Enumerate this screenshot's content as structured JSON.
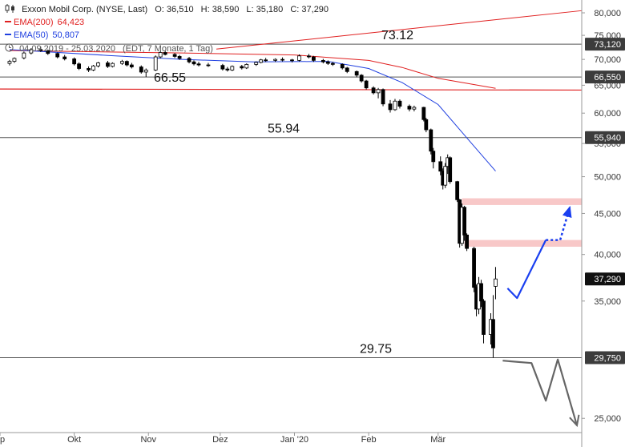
{
  "header": {
    "title": "Exxon Mobil Corp. (NYSE, Last)",
    "open": "O: 36,510",
    "high": "H: 38,590",
    "low": "L: 35,180",
    "close": "C: 37,290",
    "ema200_label": "EMA(200)",
    "ema200_value": "64,423",
    "ema50_label": "EMA(50)",
    "ema50_value": "50,807",
    "range_text": "04.09.2019 - 25.03.2020",
    "interval_text": "(EDT, 7 Monate, 1 Tag)",
    "ema200_color": "#e02020",
    "ema50_color": "#2040e0",
    "icons": [
      "candlestick-icon",
      "clock-icon"
    ]
  },
  "chart_data": {
    "type": "candlestick",
    "y_scale": "log",
    "ylim": [
      24000,
      83000
    ],
    "y_ticks": [
      {
        "value": 80000,
        "label": "80,000"
      },
      {
        "value": 75000,
        "label": "75,000"
      },
      {
        "value": 70000,
        "label": "70,000"
      },
      {
        "value": 65000,
        "label": "65,000"
      },
      {
        "value": 60000,
        "label": "60,000"
      },
      {
        "value": 55000,
        "label": "55,000"
      },
      {
        "value": 50000,
        "label": "50,000"
      },
      {
        "value": 45000,
        "label": "45,000"
      },
      {
        "value": 40000,
        "label": "40,000"
      },
      {
        "value": 35000,
        "label": "35,000"
      },
      {
        "value": 25000,
        "label": "25,000"
      }
    ],
    "x_ticks": [
      {
        "date": "2019-09-01",
        "label": "p"
      },
      {
        "date": "2019-10-01",
        "label": "Okt"
      },
      {
        "date": "2019-11-01",
        "label": "Nov"
      },
      {
        "date": "2019-12-01",
        "label": "Dez"
      },
      {
        "date": "2020-01-01",
        "label": "Jan '20"
      },
      {
        "date": "2020-02-01",
        "label": "Feb"
      },
      {
        "date": "2020-03-01",
        "label": "Mär"
      }
    ],
    "levels": [
      {
        "value": 73120,
        "label": "73.12",
        "badge": "73,120"
      },
      {
        "value": 66550,
        "label": "66.55",
        "badge": "66,550"
      },
      {
        "value": 55940,
        "label": "55.94",
        "badge": "55,940"
      },
      {
        "value": 29750,
        "label": "29.75",
        "badge": "29,750"
      }
    ],
    "last_price": {
      "value": 37290,
      "badge": "37,290"
    },
    "resistance_zones": [
      {
        "from": 46100,
        "to": 47000
      },
      {
        "from": 40900,
        "to": 41700
      }
    ],
    "ema200_series": [
      {
        "date": "2019-09-04",
        "value": 71800
      },
      {
        "date": "2019-11-15",
        "value": 71300
      },
      {
        "date": "2020-01-01",
        "value": 70900
      },
      {
        "date": "2020-02-01",
        "value": 69800
      },
      {
        "date": "2020-02-15",
        "value": 68400
      },
      {
        "date": "2020-03-01",
        "value": 66300
      },
      {
        "date": "2020-03-25",
        "value": 64423
      }
    ],
    "ema50_series": [
      {
        "date": "2019-09-04",
        "value": 72000
      },
      {
        "date": "2019-10-15",
        "value": 70800
      },
      {
        "date": "2019-11-15",
        "value": 70000
      },
      {
        "date": "2019-12-15",
        "value": 69500
      },
      {
        "date": "2020-01-15",
        "value": 69600
      },
      {
        "date": "2020-02-01",
        "value": 68200
      },
      {
        "date": "2020-02-15",
        "value": 65500
      },
      {
        "date": "2020-03-01",
        "value": 61500
      },
      {
        "date": "2020-03-15",
        "value": 55000
      },
      {
        "date": "2020-03-25",
        "value": 50807
      }
    ],
    "ohlc": [
      {
        "date": "2019-09-04",
        "o": 69200,
        "h": 69900,
        "l": 68800,
        "c": 69600
      },
      {
        "date": "2019-09-06",
        "o": 69600,
        "h": 70400,
        "l": 69300,
        "c": 70200
      },
      {
        "date": "2019-09-10",
        "o": 70300,
        "h": 71600,
        "l": 70000,
        "c": 71300
      },
      {
        "date": "2019-09-13",
        "o": 71300,
        "h": 72300,
        "l": 71000,
        "c": 72000
      },
      {
        "date": "2019-09-17",
        "o": 72000,
        "h": 72600,
        "l": 71500,
        "c": 71800
      },
      {
        "date": "2019-09-20",
        "o": 71800,
        "h": 72000,
        "l": 70900,
        "c": 71200
      },
      {
        "date": "2019-09-24",
        "o": 71200,
        "h": 71400,
        "l": 70200,
        "c": 70500
      },
      {
        "date": "2019-09-27",
        "o": 70500,
        "h": 70900,
        "l": 69800,
        "c": 70100
      },
      {
        "date": "2019-10-01",
        "o": 70100,
        "h": 70400,
        "l": 68800,
        "c": 69100
      },
      {
        "date": "2019-10-03",
        "o": 69100,
        "h": 69400,
        "l": 67900,
        "c": 68200
      },
      {
        "date": "2019-10-07",
        "o": 68200,
        "h": 68600,
        "l": 67500,
        "c": 67900
      },
      {
        "date": "2019-10-09",
        "o": 67900,
        "h": 68900,
        "l": 67700,
        "c": 68700
      },
      {
        "date": "2019-10-11",
        "o": 68700,
        "h": 69500,
        "l": 68400,
        "c": 69300
      },
      {
        "date": "2019-10-15",
        "o": 69300,
        "h": 69700,
        "l": 68300,
        "c": 68600
      },
      {
        "date": "2019-10-17",
        "o": 68600,
        "h": 69400,
        "l": 68400,
        "c": 69200
      },
      {
        "date": "2019-10-21",
        "o": 69200,
        "h": 69900,
        "l": 68900,
        "c": 69600
      },
      {
        "date": "2019-10-23",
        "o": 69600,
        "h": 69800,
        "l": 68600,
        "c": 68900
      },
      {
        "date": "2019-10-25",
        "o": 68900,
        "h": 69300,
        "l": 68200,
        "c": 68500
      },
      {
        "date": "2019-10-29",
        "o": 68500,
        "h": 68800,
        "l": 67200,
        "c": 67500
      },
      {
        "date": "2019-10-31",
        "o": 67500,
        "h": 68200,
        "l": 66550,
        "c": 67900
      },
      {
        "date": "2019-11-04",
        "o": 67900,
        "h": 70800,
        "l": 67700,
        "c": 70500
      },
      {
        "date": "2019-11-06",
        "o": 70500,
        "h": 71800,
        "l": 70200,
        "c": 71400
      },
      {
        "date": "2019-11-08",
        "o": 71400,
        "h": 71700,
        "l": 70800,
        "c": 71000
      },
      {
        "date": "2019-11-12",
        "o": 71000,
        "h": 71300,
        "l": 70300,
        "c": 70600
      },
      {
        "date": "2019-11-14",
        "o": 70600,
        "h": 70900,
        "l": 69900,
        "c": 70200
      },
      {
        "date": "2019-11-18",
        "o": 70200,
        "h": 70500,
        "l": 69200,
        "c": 69500
      },
      {
        "date": "2019-11-20",
        "o": 69500,
        "h": 69800,
        "l": 68800,
        "c": 69100
      },
      {
        "date": "2019-11-22",
        "o": 69100,
        "h": 69500,
        "l": 68600,
        "c": 68900
      },
      {
        "date": "2019-11-26",
        "o": 68900,
        "h": 69300,
        "l": 68500,
        "c": 68800
      },
      {
        "date": "2019-12-02",
        "o": 68800,
        "h": 69100,
        "l": 67800,
        "c": 68100
      },
      {
        "date": "2019-12-04",
        "o": 68100,
        "h": 68500,
        "l": 67600,
        "c": 67900
      },
      {
        "date": "2019-12-06",
        "o": 67900,
        "h": 68800,
        "l": 67700,
        "c": 68600
      },
      {
        "date": "2019-12-10",
        "o": 68600,
        "h": 68900,
        "l": 68000,
        "c": 68300
      },
      {
        "date": "2019-12-12",
        "o": 68300,
        "h": 69200,
        "l": 68100,
        "c": 69000
      },
      {
        "date": "2019-12-16",
        "o": 69000,
        "h": 69600,
        "l": 68700,
        "c": 69400
      },
      {
        "date": "2019-12-18",
        "o": 69400,
        "h": 70100,
        "l": 69200,
        "c": 69900
      },
      {
        "date": "2019-12-20",
        "o": 69900,
        "h": 70300,
        "l": 69500,
        "c": 69800
      },
      {
        "date": "2019-12-24",
        "o": 69800,
        "h": 70200,
        "l": 69500,
        "c": 70000
      },
      {
        "date": "2019-12-27",
        "o": 70000,
        "h": 70400,
        "l": 69600,
        "c": 69900
      },
      {
        "date": "2019-12-31",
        "o": 69900,
        "h": 70100,
        "l": 69400,
        "c": 69800
      },
      {
        "date": "2020-01-03",
        "o": 69800,
        "h": 71000,
        "l": 69600,
        "c": 70700
      },
      {
        "date": "2020-01-07",
        "o": 70700,
        "h": 71100,
        "l": 70200,
        "c": 70500
      },
      {
        "date": "2020-01-09",
        "o": 70500,
        "h": 70700,
        "l": 69500,
        "c": 69800
      },
      {
        "date": "2020-01-13",
        "o": 69800,
        "h": 70100,
        "l": 69200,
        "c": 69500
      },
      {
        "date": "2020-01-15",
        "o": 69500,
        "h": 69800,
        "l": 68900,
        "c": 69200
      },
      {
        "date": "2020-01-17",
        "o": 69200,
        "h": 69500,
        "l": 68700,
        "c": 69000
      },
      {
        "date": "2020-01-21",
        "o": 69000,
        "h": 69200,
        "l": 68000,
        "c": 68300
      },
      {
        "date": "2020-01-23",
        "o": 68300,
        "h": 68500,
        "l": 67300,
        "c": 67600
      },
      {
        "date": "2020-01-27",
        "o": 67600,
        "h": 67800,
        "l": 66500,
        "c": 66900
      },
      {
        "date": "2020-01-29",
        "o": 66900,
        "h": 67100,
        "l": 65500,
        "c": 65800
      },
      {
        "date": "2020-01-31",
        "o": 65800,
        "h": 66000,
        "l": 64200,
        "c": 64500
      },
      {
        "date": "2020-02-03",
        "o": 64500,
        "h": 64800,
        "l": 63300,
        "c": 63600
      },
      {
        "date": "2020-02-05",
        "o": 63600,
        "h": 64500,
        "l": 62600,
        "c": 64200
      },
      {
        "date": "2020-02-07",
        "o": 64200,
        "h": 64400,
        "l": 61200,
        "c": 61600
      },
      {
        "date": "2020-02-10",
        "o": 61600,
        "h": 62300,
        "l": 60100,
        "c": 60600
      },
      {
        "date": "2020-02-12",
        "o": 60600,
        "h": 62500,
        "l": 60400,
        "c": 62100
      },
      {
        "date": "2020-02-14",
        "o": 62100,
        "h": 62400,
        "l": 60800,
        "c": 61200
      },
      {
        "date": "2020-02-18",
        "o": 61200,
        "h": 61500,
        "l": 60300,
        "c": 60700
      },
      {
        "date": "2020-02-20",
        "o": 60700,
        "h": 61300,
        "l": 60300,
        "c": 61000
      },
      {
        "date": "2020-02-24",
        "o": 61000,
        "h": 61100,
        "l": 58600,
        "c": 58900
      },
      {
        "date": "2020-02-25",
        "o": 58900,
        "h": 59200,
        "l": 56800,
        "c": 57200
      },
      {
        "date": "2020-02-27",
        "o": 57200,
        "h": 57400,
        "l": 53300,
        "c": 53800
      },
      {
        "date": "2020-02-28",
        "o": 53800,
        "h": 54300,
        "l": 51200,
        "c": 52200
      },
      {
        "date": "2020-03-02",
        "o": 52200,
        "h": 53000,
        "l": 50200,
        "c": 50800
      },
      {
        "date": "2020-03-03",
        "o": 50800,
        "h": 51200,
        "l": 48200,
        "c": 48800
      },
      {
        "date": "2020-03-04",
        "o": 48800,
        "h": 52000,
        "l": 48400,
        "c": 51500
      },
      {
        "date": "2020-03-05",
        "o": 51500,
        "h": 53300,
        "l": 50400,
        "c": 52800
      },
      {
        "date": "2020-03-06",
        "o": 52800,
        "h": 53000,
        "l": 49000,
        "c": 49300
      },
      {
        "date": "2020-03-09",
        "o": 49300,
        "h": 49400,
        "l": 46500,
        "c": 46800
      },
      {
        "date": "2020-03-10",
        "o": 46800,
        "h": 46900,
        "l": 40800,
        "c": 41300
      },
      {
        "date": "2020-03-11",
        "o": 41300,
        "h": 46300,
        "l": 41000,
        "c": 45800
      },
      {
        "date": "2020-03-12",
        "o": 45800,
        "h": 46000,
        "l": 41600,
        "c": 42300
      },
      {
        "date": "2020-03-13",
        "o": 42300,
        "h": 42500,
        "l": 40400,
        "c": 40700
      },
      {
        "date": "2020-03-16",
        "o": 40700,
        "h": 40900,
        "l": 35900,
        "c": 36400
      },
      {
        "date": "2020-03-17",
        "o": 36400,
        "h": 36700,
        "l": 33500,
        "c": 34200
      },
      {
        "date": "2020-03-18",
        "o": 34200,
        "h": 37500,
        "l": 33700,
        "c": 36800
      },
      {
        "date": "2020-03-19",
        "o": 36800,
        "h": 37200,
        "l": 34400,
        "c": 35000
      },
      {
        "date": "2020-03-20",
        "o": 35000,
        "h": 35200,
        "l": 31000,
        "c": 31800
      },
      {
        "date": "2020-03-23",
        "o": 31800,
        "h": 33800,
        "l": 30900,
        "c": 33200
      },
      {
        "date": "2020-03-24",
        "o": 33200,
        "h": 35600,
        "l": 29750,
        "c": 30600
      },
      {
        "date": "2020-03-25",
        "o": 36510,
        "h": 38590,
        "l": 35180,
        "c": 37290
      }
    ],
    "scenario_up": [
      {
        "date": "2020-03-30",
        "value": 36300
      },
      {
        "date": "2020-04-03",
        "value": 35300
      },
      {
        "date": "2020-04-15",
        "value": 41700
      }
    ],
    "scenario_up_dotted": [
      {
        "date": "2020-04-15",
        "value": 41700
      },
      {
        "date": "2020-04-21",
        "value": 41700
      },
      {
        "date": "2020-04-25",
        "value": 45800
      }
    ],
    "scenario_down": [
      {
        "date": "2020-03-28",
        "value": 29500
      },
      {
        "date": "2020-04-09",
        "value": 29300
      },
      {
        "date": "2020-04-15",
        "value": 26300
      },
      {
        "date": "2020-04-20",
        "value": 29600
      },
      {
        "date": "2020-04-28",
        "value": 24500
      }
    ],
    "colors": {
      "candle_up": "#ffffff",
      "candle_down": "#000000",
      "candle_wick": "#000000",
      "ema200": "#e02020",
      "ema50": "#2040e0",
      "level_line": "#555555",
      "zone": "#f8c8c8",
      "scenario_up": "#1a3ff0",
      "scenario_down": "#666666",
      "badge_dark": "#3c3c3c",
      "badge_text": "#ffffff"
    }
  }
}
